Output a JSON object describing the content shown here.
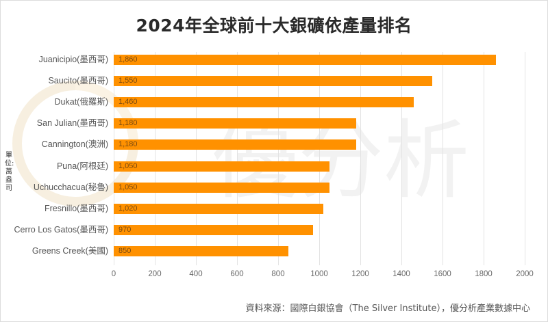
{
  "chart_data": {
    "type": "bar",
    "orientation": "horizontal",
    "title": "2024年全球前十大銀礦依產量排名",
    "ylabel": "單位:萬盎司",
    "xlabel": "",
    "xlim": [
      0,
      2000
    ],
    "xticks": [
      "0",
      "200",
      "400",
      "600",
      "800",
      "1000",
      "1200",
      "1400",
      "1600",
      "1800",
      "2000"
    ],
    "grid": true,
    "legend": null,
    "categories": [
      "Juanicipio(墨西哥)",
      "Saucito(墨西哥)",
      "Dukat(俄羅斯)",
      "San Julian(墨西哥)",
      "Cannington(澳洲)",
      "Puna(阿根廷)",
      "Uchucchacua(秘魯)",
      "Fresnillo(墨西哥)",
      "Cerro Los Gatos(墨西哥)",
      "Greens Creek(美國)"
    ],
    "values": [
      1860,
      1550,
      1460,
      1180,
      1180,
      1050,
      1050,
      1020,
      970,
      850
    ],
    "value_labels": [
      "1,860",
      "1,550",
      "1,460",
      "1,180",
      "1,180",
      "1,050",
      "1,050",
      "1,020",
      "970",
      "850"
    ],
    "bar_color": "#ff9100",
    "source": "資料來源：國際白銀協會（The Silver Institute），優分析產業數據中心"
  },
  "watermark": {
    "text": "優分析"
  }
}
